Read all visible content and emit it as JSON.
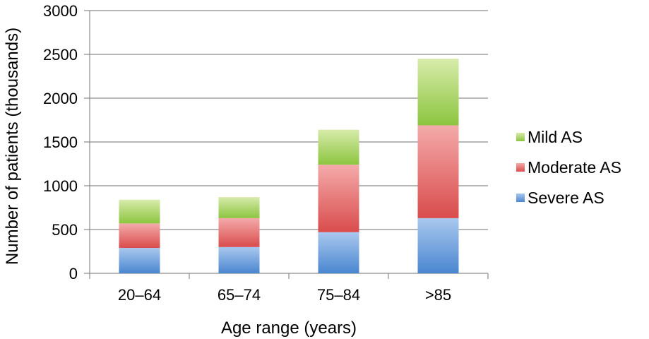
{
  "chart_data": {
    "type": "bar",
    "stacked": true,
    "title": "",
    "xlabel": "Age range (years)",
    "ylabel": "Number of patients (thousands)",
    "categories": [
      "20–64",
      "65–74",
      "75–84",
      ">85"
    ],
    "series": [
      {
        "name": "Severe AS",
        "values": [
          290,
          300,
          470,
          630
        ]
      },
      {
        "name": "Moderate AS",
        "values": [
          280,
          330,
          770,
          1060
        ]
      },
      {
        "name": "Mild AS",
        "values": [
          270,
          240,
          400,
          760
        ]
      }
    ],
    "ylim": [
      0,
      3000
    ],
    "yticks": [
      0,
      500,
      1000,
      1500,
      2000,
      2500,
      3000
    ],
    "grid": true,
    "legend_position": "right",
    "colors": {
      "Severe AS": {
        "top": "#a9c8ee",
        "bottom": "#4a86d0"
      },
      "Moderate AS": {
        "top": "#f4aaaa",
        "bottom": "#d94c4c"
      },
      "Mild AS": {
        "top": "#d7ebaa",
        "bottom": "#8cc53f"
      },
      "grid": "#8c8c8c"
    }
  }
}
